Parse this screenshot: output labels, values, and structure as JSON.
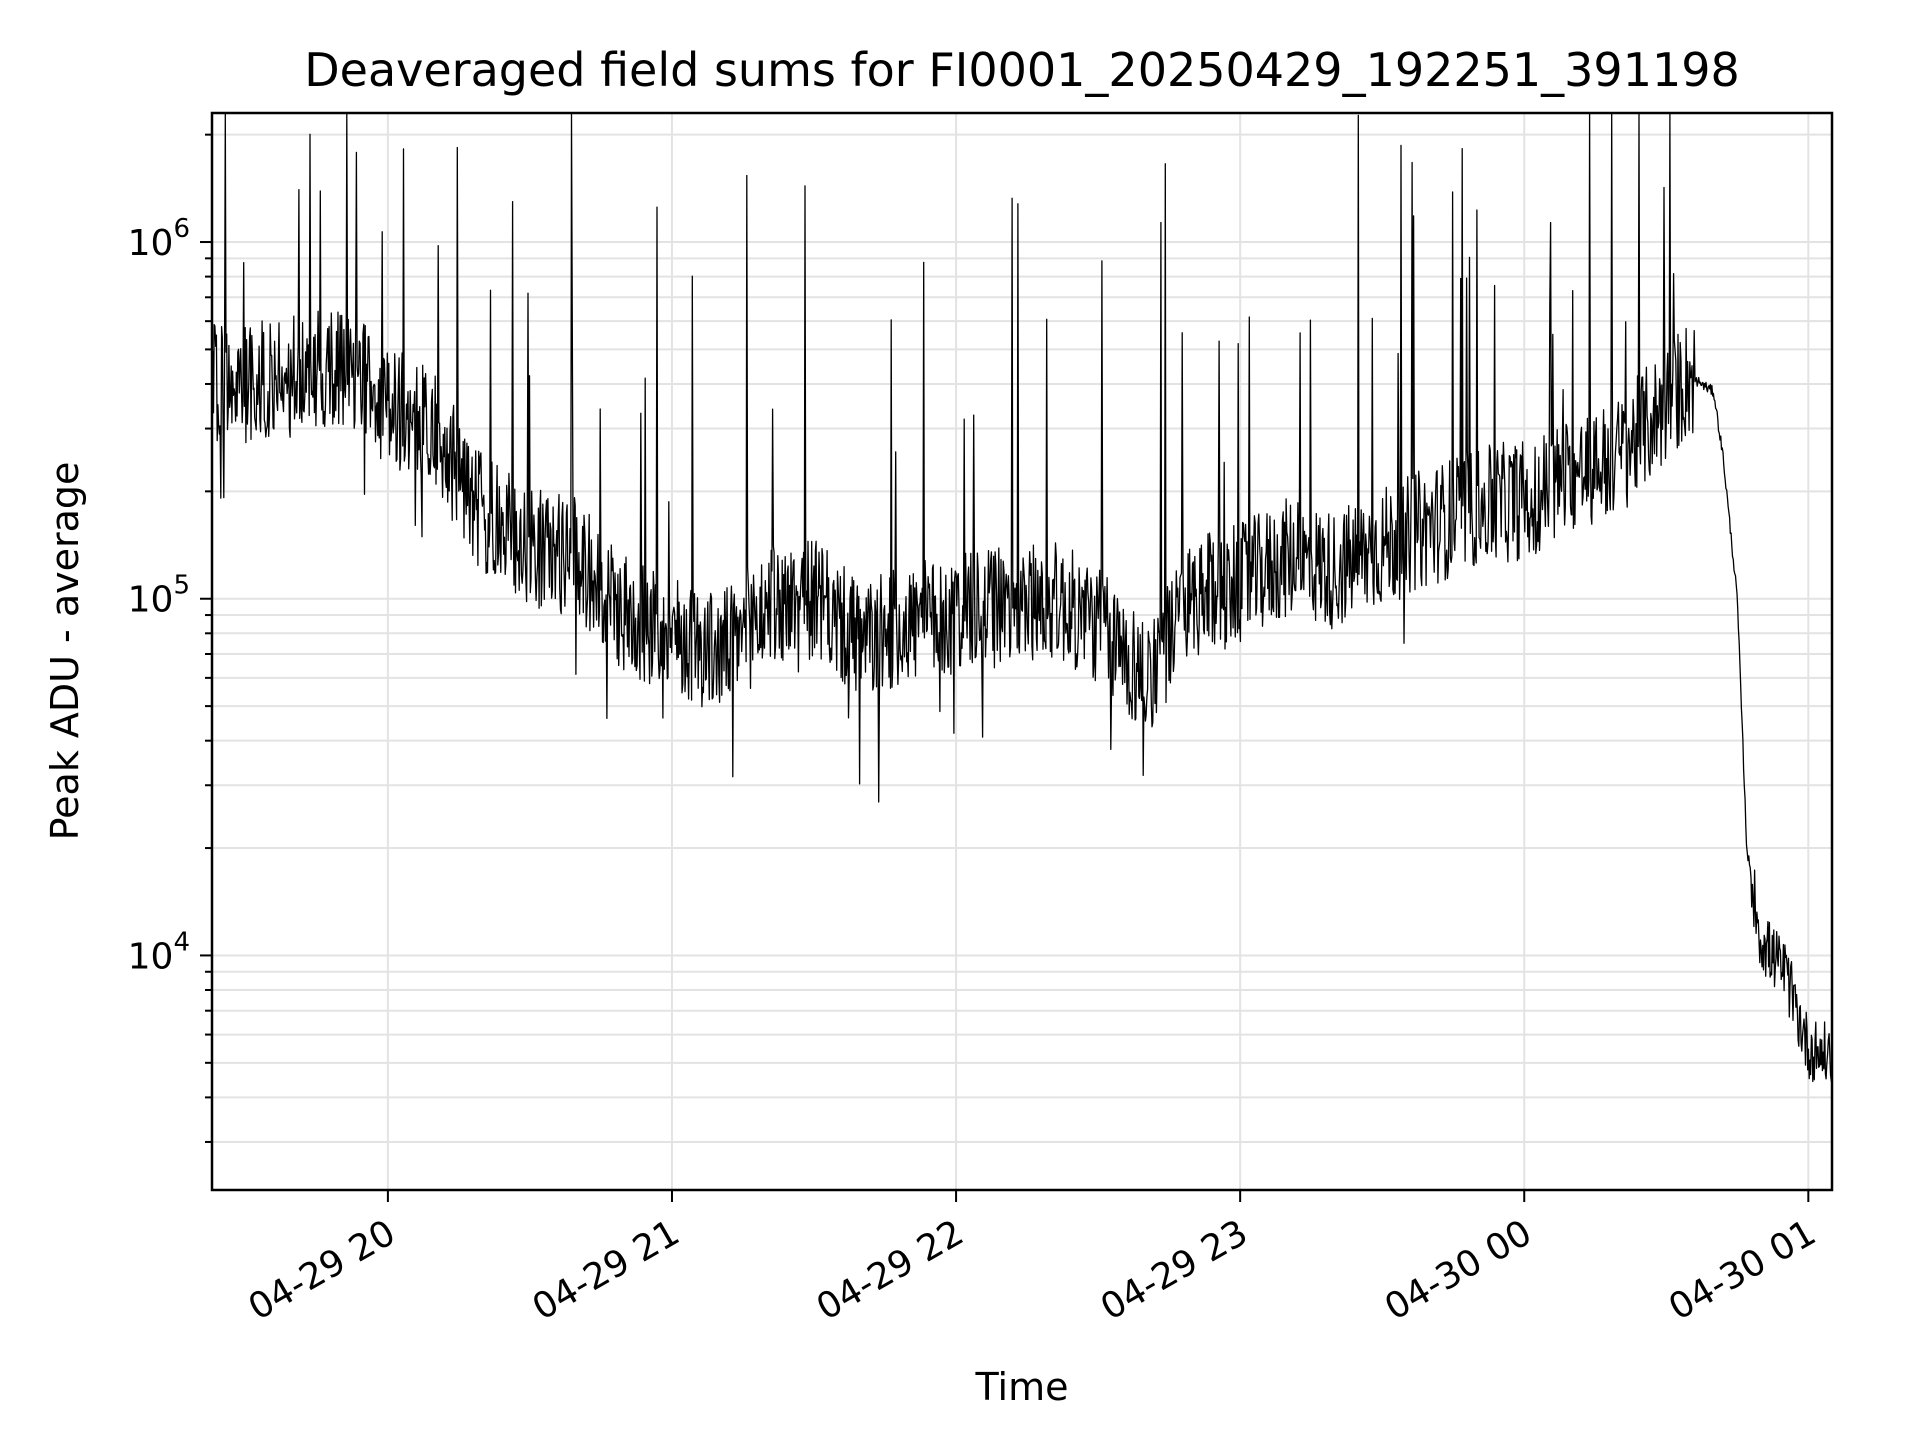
{
  "chart_data": {
    "type": "line",
    "title": "Deaveraged field sums for FI0001_20250429_192251_391198",
    "xlabel": "Time",
    "ylabel": "Peak ADU - average",
    "yscale": "log",
    "ylim": [
      2200,
      2300000
    ],
    "xlim": [
      "2025-04-29 19:22:51",
      "2025-04-30 01:05:00"
    ],
    "grid": true,
    "x_ticks": [
      {
        "t": "2025-04-29 20:00",
        "label": "04-29 20"
      },
      {
        "t": "2025-04-29 21:00",
        "label": "04-29 21"
      },
      {
        "t": "2025-04-29 22:00",
        "label": "04-29 22"
      },
      {
        "t": "2025-04-29 23:00",
        "label": "04-29 23"
      },
      {
        "t": "2025-04-30 00:00",
        "label": "04-30 00"
      },
      {
        "t": "2025-04-30 01:00",
        "label": "04-30 01"
      }
    ],
    "y_ticks": [
      {
        "value": 10000,
        "base": "10",
        "exp": "4"
      },
      {
        "value": 100000,
        "base": "10",
        "exp": "5"
      },
      {
        "value": 1000000,
        "base": "10",
        "exp": "6"
      }
    ],
    "series": [
      {
        "color": "#000000",
        "x": [
          "2025-04-29 19:22:51",
          "2025-04-29 19:30",
          "2025-04-29 19:40",
          "2025-04-29 19:50",
          "2025-04-29 20:00",
          "2025-04-29 20:10",
          "2025-04-29 20:20",
          "2025-04-29 20:30",
          "2025-04-29 20:40",
          "2025-04-29 20:50",
          "2025-04-29 21:00",
          "2025-04-29 21:10",
          "2025-04-29 21:20",
          "2025-04-29 21:30",
          "2025-04-29 21:40",
          "2025-04-29 21:50",
          "2025-04-29 22:00",
          "2025-04-29 22:10",
          "2025-04-29 22:20",
          "2025-04-29 22:30",
          "2025-04-29 22:40",
          "2025-04-29 22:50",
          "2025-04-29 23:00",
          "2025-04-29 23:10",
          "2025-04-29 23:20",
          "2025-04-29 23:30",
          "2025-04-29 23:40",
          "2025-04-29 23:50",
          "2025-04-30 00:00",
          "2025-04-30 00:10",
          "2025-04-30 00:20",
          "2025-04-30 00:30",
          "2025-04-30 00:35",
          "2025-04-30 00:40",
          "2025-04-30 00:42",
          "2025-04-30 00:45",
          "2025-04-30 00:47",
          "2025-04-30 00:50",
          "2025-04-30 00:55",
          "2025-04-30 01:00",
          "2025-04-30 01:05"
        ],
        "y": [
          400000,
          400000,
          420000,
          450000,
          350000,
          300000,
          170000,
          140000,
          130000,
          90000,
          80000,
          70000,
          95000,
          100000,
          75000,
          85000,
          90000,
          95000,
          100000,
          85000,
          60000,
          100000,
          110000,
          130000,
          120000,
          140000,
          160000,
          180000,
          190000,
          220000,
          250000,
          350000,
          420000,
          380000,
          250000,
          100000,
          20000,
          11000,
          9000,
          5500,
          5200
        ]
      }
    ]
  }
}
